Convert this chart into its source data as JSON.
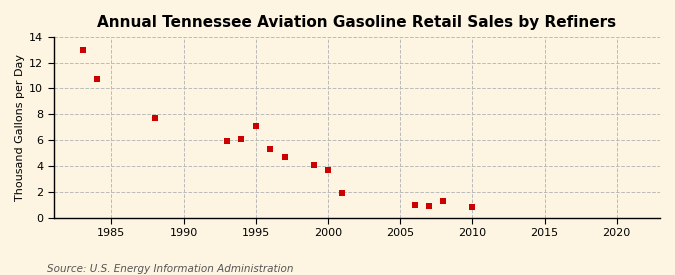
{
  "title": "Annual Tennessee Aviation Gasoline Retail Sales by Refiners",
  "ylabel": "Thousand Gallons per Day",
  "source": "Source: U.S. Energy Information Administration",
  "background_color": "#FDF5E2",
  "plot_bg_color": "#FDF5E2",
  "marker_color": "#CC0000",
  "years": [
    1983,
    1984,
    1988,
    1993,
    1994,
    1995,
    1996,
    1997,
    1999,
    2000,
    2001,
    2006,
    2007,
    2008,
    2010
  ],
  "values": [
    13.0,
    10.7,
    7.7,
    5.9,
    6.1,
    7.1,
    5.3,
    4.7,
    4.1,
    3.7,
    1.9,
    1.0,
    0.9,
    1.3,
    0.8
  ],
  "xlim": [
    1981,
    2023
  ],
  "ylim": [
    0,
    14
  ],
  "xticks": [
    1985,
    1990,
    1995,
    2000,
    2005,
    2010,
    2015,
    2020
  ],
  "yticks": [
    0,
    2,
    4,
    6,
    8,
    10,
    12,
    14
  ],
  "grid_color": "#BBBBBB",
  "marker_size": 5,
  "title_fontsize": 11,
  "axis_fontsize": 8,
  "source_fontsize": 7.5
}
